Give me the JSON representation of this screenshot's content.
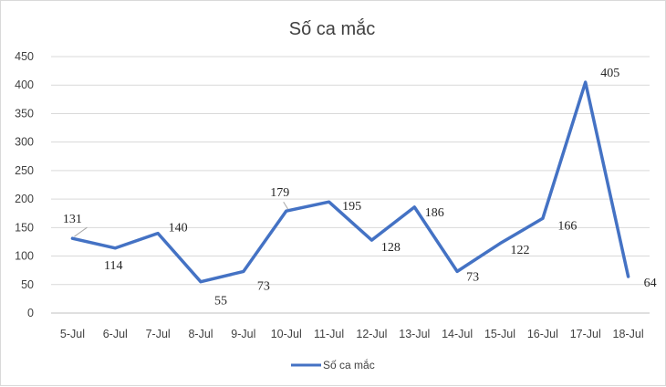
{
  "chart_data": {
    "type": "line",
    "title": "Số ca mắc",
    "categories": [
      "5-Jul",
      "6-Jul",
      "7-Jul",
      "8-Jul",
      "9-Jul",
      "10-Jul",
      "11-Jul",
      "12-Jul",
      "13-Jul",
      "14-Jul",
      "15-Jul",
      "16-Jul",
      "17-Jul",
      "18-Jul"
    ],
    "series": [
      {
        "name": "Số ca mắc",
        "values": [
          131,
          114,
          140,
          55,
          73,
          179,
          195,
          128,
          186,
          73,
          122,
          166,
          405,
          64
        ],
        "color": "#4472C4"
      }
    ],
    "yticks": [
      "0",
      "50",
      "100",
      "150",
      "200",
      "250",
      "300",
      "350",
      "400",
      "450"
    ],
    "ylim": [
      0,
      450
    ],
    "grid": true,
    "legend_position": "bottom"
  }
}
